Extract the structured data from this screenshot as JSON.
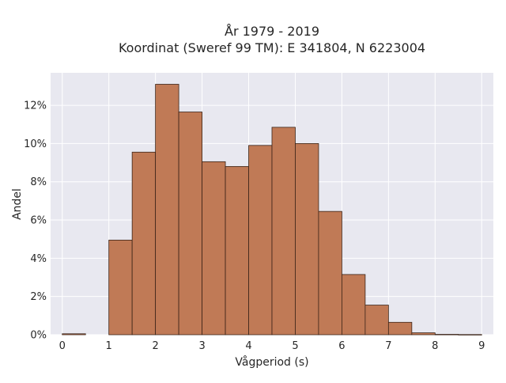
{
  "chart_data": {
    "type": "bar",
    "title": "År 1979 - 2019",
    "subtitle": "Koordinat (Sweref 99 TM): E 341804, N 6223004",
    "xlabel": "Vågperiod (s)",
    "ylabel": "Andel",
    "xlim": [
      -0.25,
      9.25
    ],
    "ylim": [
      0,
      13.7
    ],
    "xticks": [
      0,
      1,
      2,
      3,
      4,
      5,
      6,
      7,
      8,
      9
    ],
    "yticks": [
      0,
      2,
      4,
      6,
      8,
      10,
      12
    ],
    "ytick_suffix": "%",
    "grid": true,
    "bar_color": "#c07a56",
    "bar_edge_color": "#3b2418",
    "background_color": "#e8e8f0",
    "bins": [
      {
        "x0": 0.0,
        "x1": 0.5,
        "value": 0.05
      },
      {
        "x0": 0.5,
        "x1": 1.0,
        "value": 0.0
      },
      {
        "x0": 1.0,
        "x1": 1.5,
        "value": 4.95
      },
      {
        "x0": 1.5,
        "x1": 2.0,
        "value": 9.55
      },
      {
        "x0": 2.0,
        "x1": 2.5,
        "value": 13.1
      },
      {
        "x0": 2.5,
        "x1": 3.0,
        "value": 11.65
      },
      {
        "x0": 3.0,
        "x1": 3.5,
        "value": 9.05
      },
      {
        "x0": 3.5,
        "x1": 4.0,
        "value": 8.8
      },
      {
        "x0": 4.0,
        "x1": 4.5,
        "value": 9.9
      },
      {
        "x0": 4.5,
        "x1": 5.0,
        "value": 10.85
      },
      {
        "x0": 5.0,
        "x1": 5.5,
        "value": 10.0
      },
      {
        "x0": 5.5,
        "x1": 6.0,
        "value": 6.45
      },
      {
        "x0": 6.0,
        "x1": 6.5,
        "value": 3.15
      },
      {
        "x0": 6.5,
        "x1": 7.0,
        "value": 1.55
      },
      {
        "x0": 7.0,
        "x1": 7.5,
        "value": 0.65
      },
      {
        "x0": 7.5,
        "x1": 8.0,
        "value": 0.1
      },
      {
        "x0": 8.0,
        "x1": 8.5,
        "value": 0.02
      },
      {
        "x0": 8.5,
        "x1": 9.0,
        "value": 0.01
      }
    ]
  }
}
